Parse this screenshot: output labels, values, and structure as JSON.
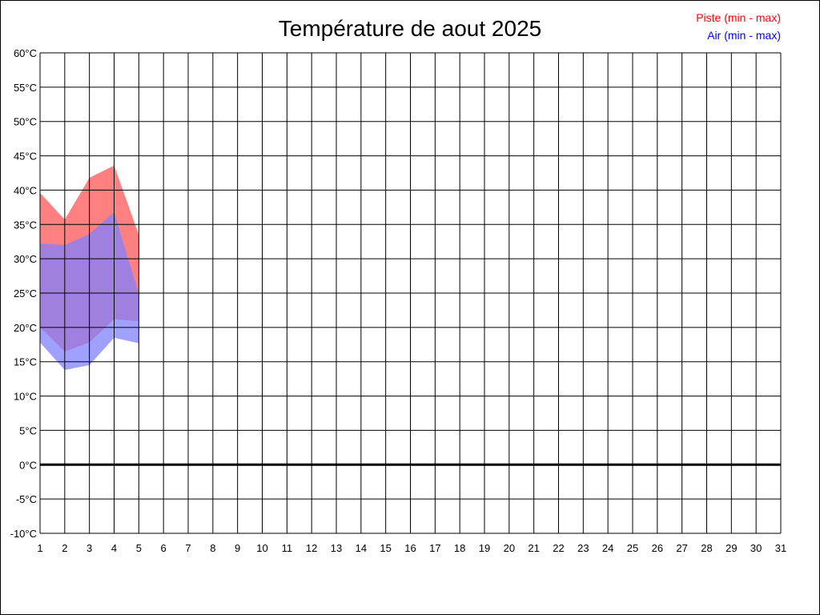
{
  "chart_data": {
    "type": "area",
    "title": "Température de aout 2025",
    "x": [
      1,
      2,
      3,
      4,
      5
    ],
    "xlim": [
      1,
      31
    ],
    "x_ticks": [
      "1",
      "2",
      "3",
      "4",
      "5",
      "6",
      "7",
      "8",
      "9",
      "10",
      "11",
      "12",
      "13",
      "14",
      "15",
      "16",
      "17",
      "18",
      "19",
      "20",
      "21",
      "22",
      "23",
      "24",
      "25",
      "26",
      "27",
      "28",
      "29",
      "30",
      "31"
    ],
    "ylim": [
      -10,
      60
    ],
    "y_ticks": [
      "60°C",
      "55°C",
      "50°C",
      "45°C",
      "40°C",
      "35°C",
      "30°C",
      "25°C",
      "20°C",
      "15°C",
      "10°C",
      "5°C",
      "0°C",
      "-5°C",
      "-10°C"
    ],
    "y_tick_values": [
      60,
      55,
      50,
      45,
      40,
      35,
      30,
      25,
      20,
      15,
      10,
      5,
      0,
      -5,
      -10
    ],
    "grid": true,
    "legend_position": "top-right",
    "series": [
      {
        "name": "Piste (min - max)",
        "color": "#ff0000",
        "fill": "#ff8080",
        "min": [
          20.0,
          16.5,
          17.8,
          21.2,
          20.9
        ],
        "max": [
          39.6,
          35.7,
          41.8,
          43.6,
          33.5
        ]
      },
      {
        "name": "Air (min - max)",
        "color": "#0000ff",
        "fill": "#8080ff",
        "min": [
          17.8,
          13.8,
          14.5,
          18.5,
          17.7
        ],
        "max": [
          32.2,
          32.0,
          33.6,
          36.8,
          24.9
        ]
      }
    ]
  }
}
